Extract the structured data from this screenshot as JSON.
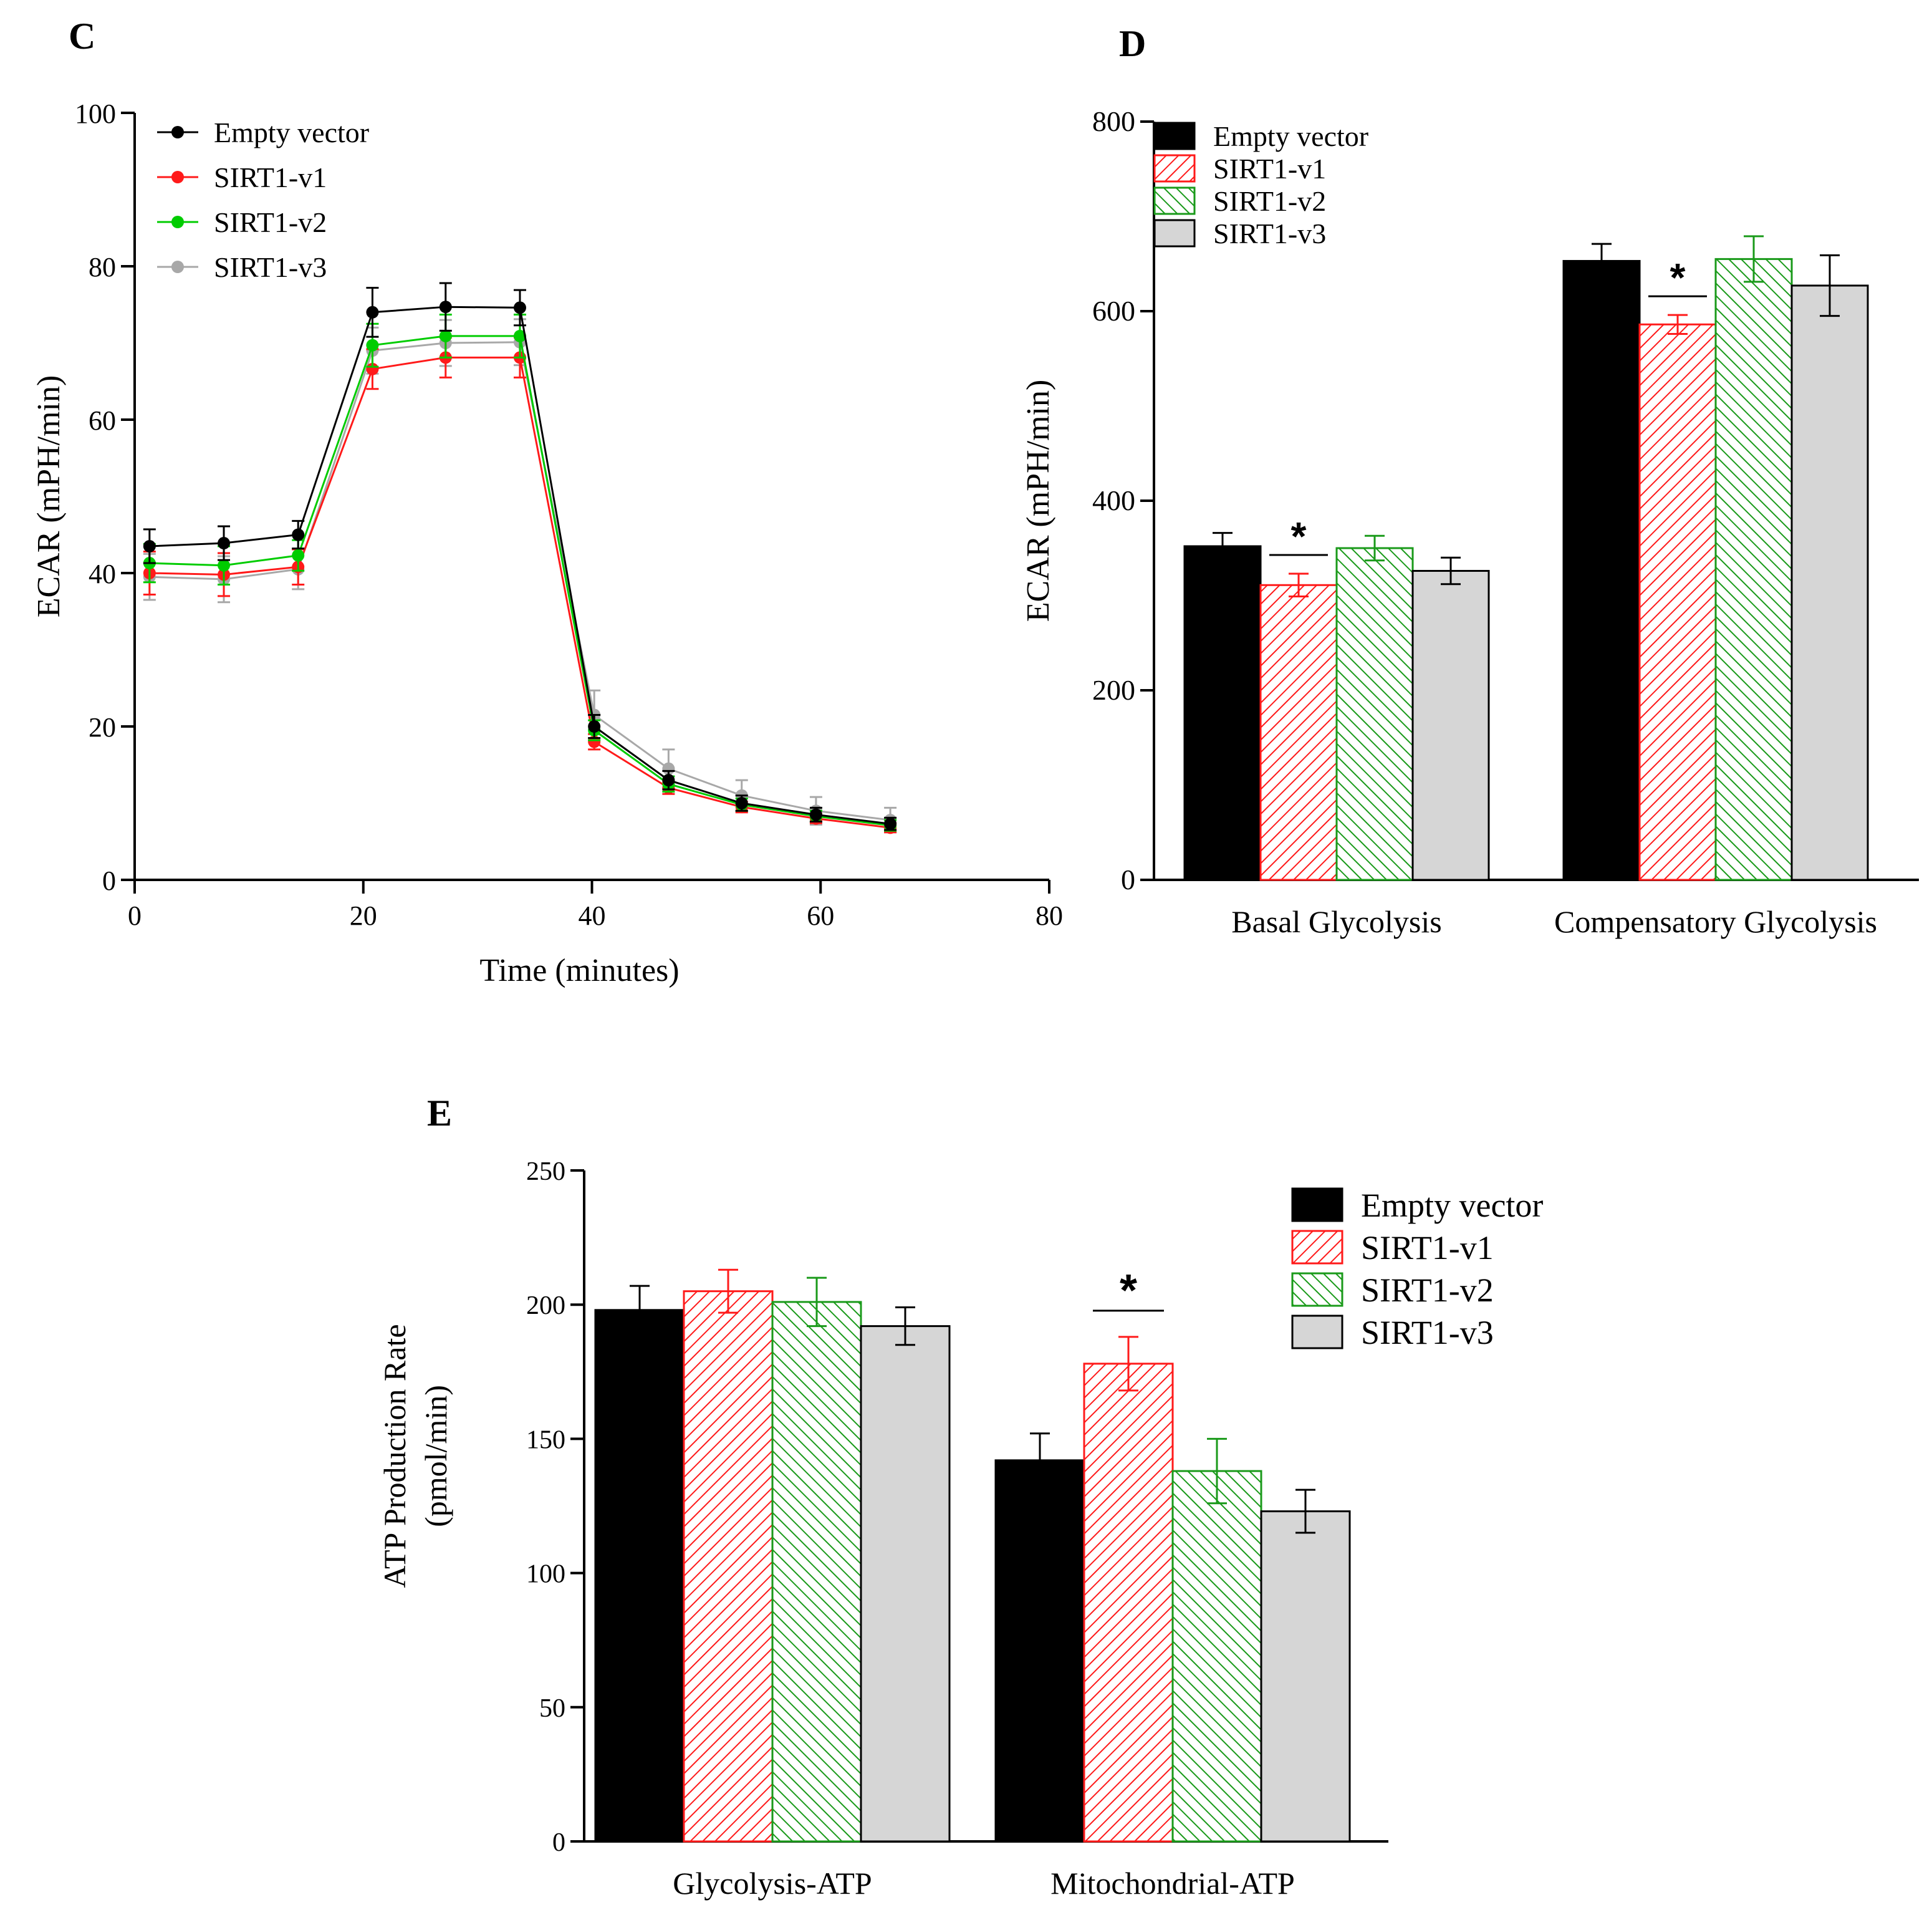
{
  "panels": {
    "c": {
      "label": "C"
    },
    "d": {
      "label": "D"
    },
    "e": {
      "label": "E"
    }
  },
  "colors": {
    "empty_vector": "#000000",
    "sirt1_v1": "#ff1a1a",
    "sirt1_v2": "#1a9a1a",
    "sirt1_v2_line": "#00cc00",
    "sirt1_v3": "#d6d6d6",
    "sirt1_v3_line": "#a8a8a8"
  },
  "chart_data": [
    {
      "id": "C",
      "type": "line",
      "xlabel": "Time (minutes)",
      "ylabel": "ECAR (mPH/min)",
      "xlim": [
        0,
        80
      ],
      "ylim": [
        0,
        100
      ],
      "xticks": [
        0,
        20,
        40,
        60,
        80
      ],
      "yticks": [
        0,
        20,
        40,
        60,
        80,
        100
      ],
      "legend": "top-left",
      "x": [
        1.3,
        7.8,
        14.3,
        20.8,
        27.2,
        33.7,
        40.2,
        46.7,
        53.1,
        59.6,
        66.1
      ],
      "series": [
        {
          "name": "Empty vector",
          "values": [
            43.5,
            43.9,
            45.0,
            74.0,
            74.7,
            74.6,
            20.0,
            13.0,
            10.0,
            8.5,
            7.3
          ],
          "errors": [
            2.2,
            2.2,
            1.8,
            3.2,
            3.1,
            2.3,
            1.5,
            1.2,
            1.0,
            0.9,
            0.8
          ]
        },
        {
          "name": "SIRT1-v1",
          "values": [
            40.0,
            39.8,
            40.8,
            66.6,
            68.1,
            68.1,
            18.0,
            12.0,
            9.5,
            8.0,
            6.8
          ],
          "errors": [
            2.8,
            2.8,
            2.3,
            2.6,
            2.6,
            2.6,
            1.0,
            0.8,
            0.7,
            0.6,
            0.6
          ]
        },
        {
          "name": "SIRT1-v2",
          "values": [
            41.3,
            41.0,
            42.3,
            69.7,
            70.9,
            70.9,
            19.5,
            12.5,
            9.8,
            8.3,
            7.1
          ],
          "errors": [
            2.5,
            2.5,
            2.0,
            2.8,
            2.8,
            2.8,
            1.3,
            1.0,
            0.8,
            0.7,
            0.7
          ]
        },
        {
          "name": "SIRT1-v3",
          "values": [
            39.5,
            39.2,
            40.5,
            69.0,
            70.0,
            70.1,
            21.5,
            14.5,
            11.0,
            9.0,
            7.8
          ],
          "errors": [
            3.0,
            3.0,
            2.6,
            3.0,
            3.0,
            3.0,
            3.2,
            2.5,
            2.0,
            1.8,
            1.6
          ]
        }
      ]
    },
    {
      "id": "D",
      "type": "bar",
      "ylabel": "ECAR (mPH/min)",
      "ylim": [
        0,
        800
      ],
      "yticks": [
        0,
        200,
        400,
        600,
        800
      ],
      "categories": [
        "Basal Glycolysis",
        "Compensatory Glycolysis"
      ],
      "legend": "top-left",
      "series": [
        {
          "name": "Empty vector",
          "values": [
            352,
            653
          ],
          "errors": [
            14,
            18
          ],
          "pattern": "solid"
        },
        {
          "name": "SIRT1-v1",
          "values": [
            311,
            586
          ],
          "errors": [
            12,
            10
          ],
          "pattern": "hatch-forward"
        },
        {
          "name": "SIRT1-v2",
          "values": [
            350,
            655
          ],
          "errors": [
            13,
            24
          ],
          "pattern": "hatch-back"
        },
        {
          "name": "SIRT1-v3",
          "values": [
            326,
            627
          ],
          "errors": [
            14,
            32
          ],
          "pattern": "solid-gray"
        }
      ],
      "significance": [
        {
          "category": 0,
          "series": 1,
          "mark": "*"
        },
        {
          "category": 1,
          "series": 1,
          "mark": "*"
        }
      ]
    },
    {
      "id": "E",
      "type": "bar",
      "ylabel_lines": [
        "ATP Production Rate",
        "(pmol/min)"
      ],
      "ylim": [
        0,
        250
      ],
      "yticks": [
        0,
        50,
        100,
        150,
        200,
        250
      ],
      "categories": [
        "Glycolysis-ATP",
        "Mitochondrial-ATP"
      ],
      "legend": "top-right",
      "series": [
        {
          "name": "Empty vector",
          "values": [
            198,
            142
          ],
          "errors": [
            9,
            10
          ],
          "pattern": "solid"
        },
        {
          "name": "SIRT1-v1",
          "values": [
            205,
            178
          ],
          "errors": [
            8,
            10
          ],
          "pattern": "hatch-forward"
        },
        {
          "name": "SIRT1-v2",
          "values": [
            201,
            138
          ],
          "errors": [
            9,
            12
          ],
          "pattern": "hatch-back"
        },
        {
          "name": "SIRT1-v3",
          "values": [
            192,
            123
          ],
          "errors": [
            7,
            8
          ],
          "pattern": "solid-gray"
        }
      ],
      "significance": [
        {
          "category": 1,
          "series": 1,
          "mark": "*"
        }
      ]
    }
  ]
}
